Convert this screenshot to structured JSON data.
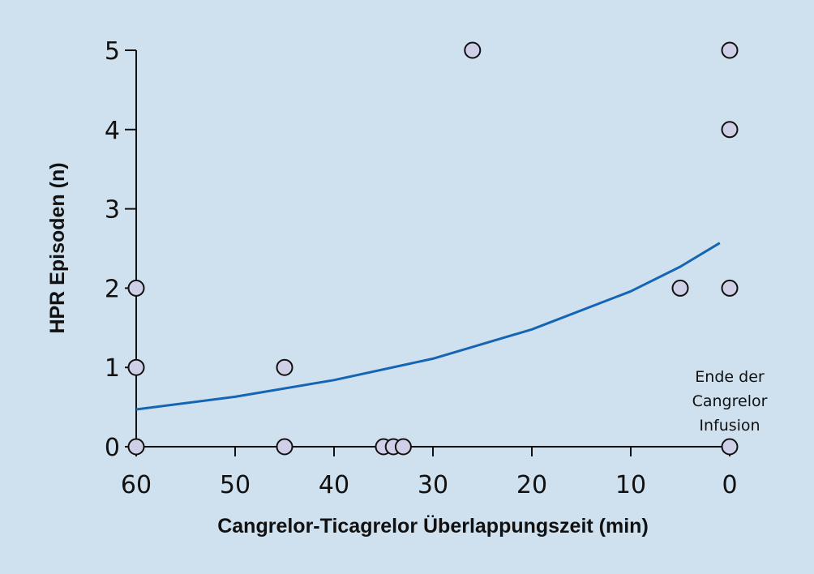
{
  "chart_data": {
    "type": "scatter",
    "x_axis": {
      "label": "Cangrelor-Ticagrelor Überlappungszeit (min)",
      "ticks": [
        60,
        50,
        40,
        30,
        20,
        10,
        0
      ],
      "reversed": true
    },
    "y_axis": {
      "label": "HPR Episoden (n)",
      "ticks": [
        0,
        1,
        2,
        3,
        4,
        5
      ]
    },
    "xlim": [
      60,
      0
    ],
    "ylim": [
      0,
      5
    ],
    "points": [
      {
        "x": 60,
        "y": 2
      },
      {
        "x": 60,
        "y": 1
      },
      {
        "x": 60,
        "y": 0
      },
      {
        "x": 45,
        "y": 1
      },
      {
        "x": 45,
        "y": 0
      },
      {
        "x": 35,
        "y": 0
      },
      {
        "x": 34,
        "y": 0
      },
      {
        "x": 33,
        "y": 0
      },
      {
        "x": 26,
        "y": 5
      },
      {
        "x": 5,
        "y": 2
      },
      {
        "x": 0,
        "y": 5
      },
      {
        "x": 0,
        "y": 4
      },
      {
        "x": 0,
        "y": 2
      },
      {
        "x": 0,
        "y": 0
      }
    ],
    "fit_curve": [
      {
        "x": 60,
        "y": 0.47
      },
      {
        "x": 50,
        "y": 0.63
      },
      {
        "x": 40,
        "y": 0.84
      },
      {
        "x": 30,
        "y": 1.11
      },
      {
        "x": 20,
        "y": 1.48
      },
      {
        "x": 10,
        "y": 1.96
      },
      {
        "x": 5,
        "y": 2.27
      },
      {
        "x": 1,
        "y": 2.57
      }
    ],
    "annotation": {
      "lines": [
        "Ende der",
        "Cangrelor",
        "Infusion"
      ]
    },
    "colors": {
      "background": "#cfe0ee",
      "point_fill": "#cfcfe8",
      "point_stroke": "#111111",
      "curve": "#1565b5",
      "axis": "#111111"
    }
  }
}
